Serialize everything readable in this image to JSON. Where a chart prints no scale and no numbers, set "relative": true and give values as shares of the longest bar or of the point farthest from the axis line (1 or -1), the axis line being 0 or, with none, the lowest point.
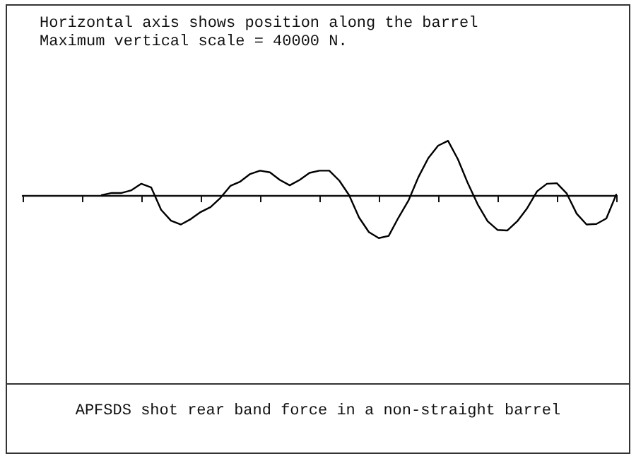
{
  "chart_data": {
    "type": "line",
    "title": "APFSDS shot rear band force in a non-straight barrel",
    "annotations": [
      "Horizontal axis shows position along the barrel",
      "Maximum vertical scale = 40000 N."
    ],
    "relative": true,
    "color": "#000000",
    "line_style": "solid",
    "categories": [
      null,
      null,
      null,
      null,
      null,
      null,
      null,
      null,
      null,
      null,
      null,
      null,
      null,
      null,
      null,
      null,
      null,
      null,
      null,
      null,
      null,
      null,
      null,
      null,
      null,
      null,
      null,
      null,
      null,
      null,
      null,
      null,
      null,
      null,
      null,
      null,
      null,
      null,
      null,
      null,
      null,
      null,
      null,
      null,
      null,
      null,
      null,
      null,
      null,
      null,
      null,
      null,
      null,
      null,
      null,
      null,
      null,
      null,
      null,
      null,
      null
    ],
    "values": [
      null,
      null,
      null,
      null,
      null,
      null,
      null,
      null,
      0,
      0.04,
      0.04,
      0.09,
      0.21,
      0.14,
      -0.27,
      -0.47,
      -0.54,
      -0.44,
      -0.31,
      -0.22,
      -0.05,
      0.17,
      0.25,
      0.39,
      0.45,
      0.42,
      0.28,
      0.18,
      0.28,
      0.41,
      0.45,
      0.45,
      0.27,
      0,
      -0.41,
      -0.68,
      -0.79,
      -0.75,
      -0.41,
      -0.1,
      0.33,
      0.68,
      0.91,
      1,
      0.66,
      0.22,
      -0.17,
      -0.48,
      -0.64,
      -0.65,
      -0.48,
      -0.24,
      0.07,
      0.21,
      0.22,
      0.03,
      -0.34,
      -0.54,
      -0.53,
      -0.43,
      0.01
    ]
  }
}
